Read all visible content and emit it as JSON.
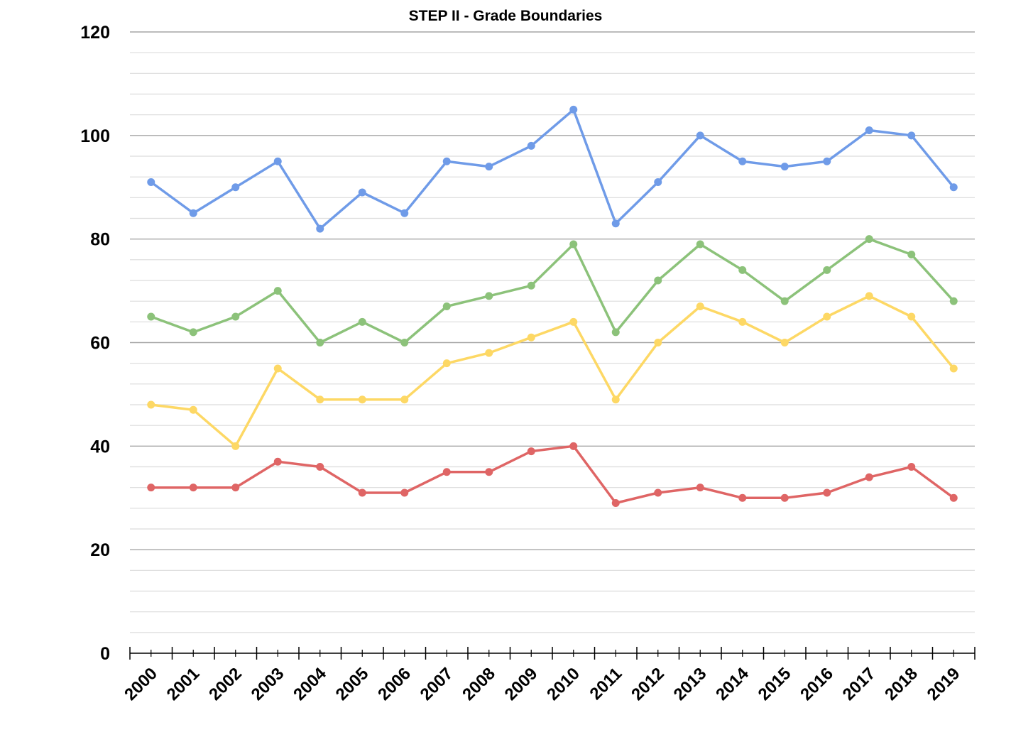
{
  "chart_data": {
    "type": "line",
    "title": "STEP II - Grade Boundaries",
    "xlabel": "",
    "ylabel": "",
    "categories": [
      "2000",
      "2001",
      "2002",
      "2003",
      "2004",
      "2005",
      "2006",
      "2007",
      "2008",
      "2009",
      "2010",
      "2011",
      "2012",
      "2013",
      "2014",
      "2015",
      "2016",
      "2017",
      "2018",
      "2019"
    ],
    "ylim": [
      0,
      120
    ],
    "y_ticks": [
      0,
      20,
      40,
      60,
      80,
      100,
      120
    ],
    "minor_grid_step": 4,
    "grid": true,
    "legend": "none",
    "series": [
      {
        "color": "#6f9be8",
        "values": [
          91,
          85,
          90,
          95,
          82,
          89,
          85,
          95,
          94,
          98,
          105,
          83,
          91,
          100,
          95,
          94,
          95,
          101,
          100,
          90
        ]
      },
      {
        "color": "#8cc27a",
        "values": [
          65,
          62,
          65,
          70,
          60,
          64,
          60,
          67,
          69,
          71,
          79,
          62,
          72,
          79,
          74,
          68,
          74,
          80,
          77,
          68
        ]
      },
      {
        "color": "#fdd865",
        "values": [
          48,
          47,
          40,
          55,
          49,
          49,
          49,
          56,
          58,
          61,
          64,
          49,
          60,
          67,
          64,
          60,
          65,
          69,
          65,
          55
        ]
      },
      {
        "color": "#df6565",
        "values": [
          32,
          32,
          32,
          37,
          36,
          31,
          31,
          35,
          35,
          39,
          40,
          29,
          31,
          32,
          30,
          30,
          31,
          34,
          36,
          30
        ]
      }
    ]
  }
}
